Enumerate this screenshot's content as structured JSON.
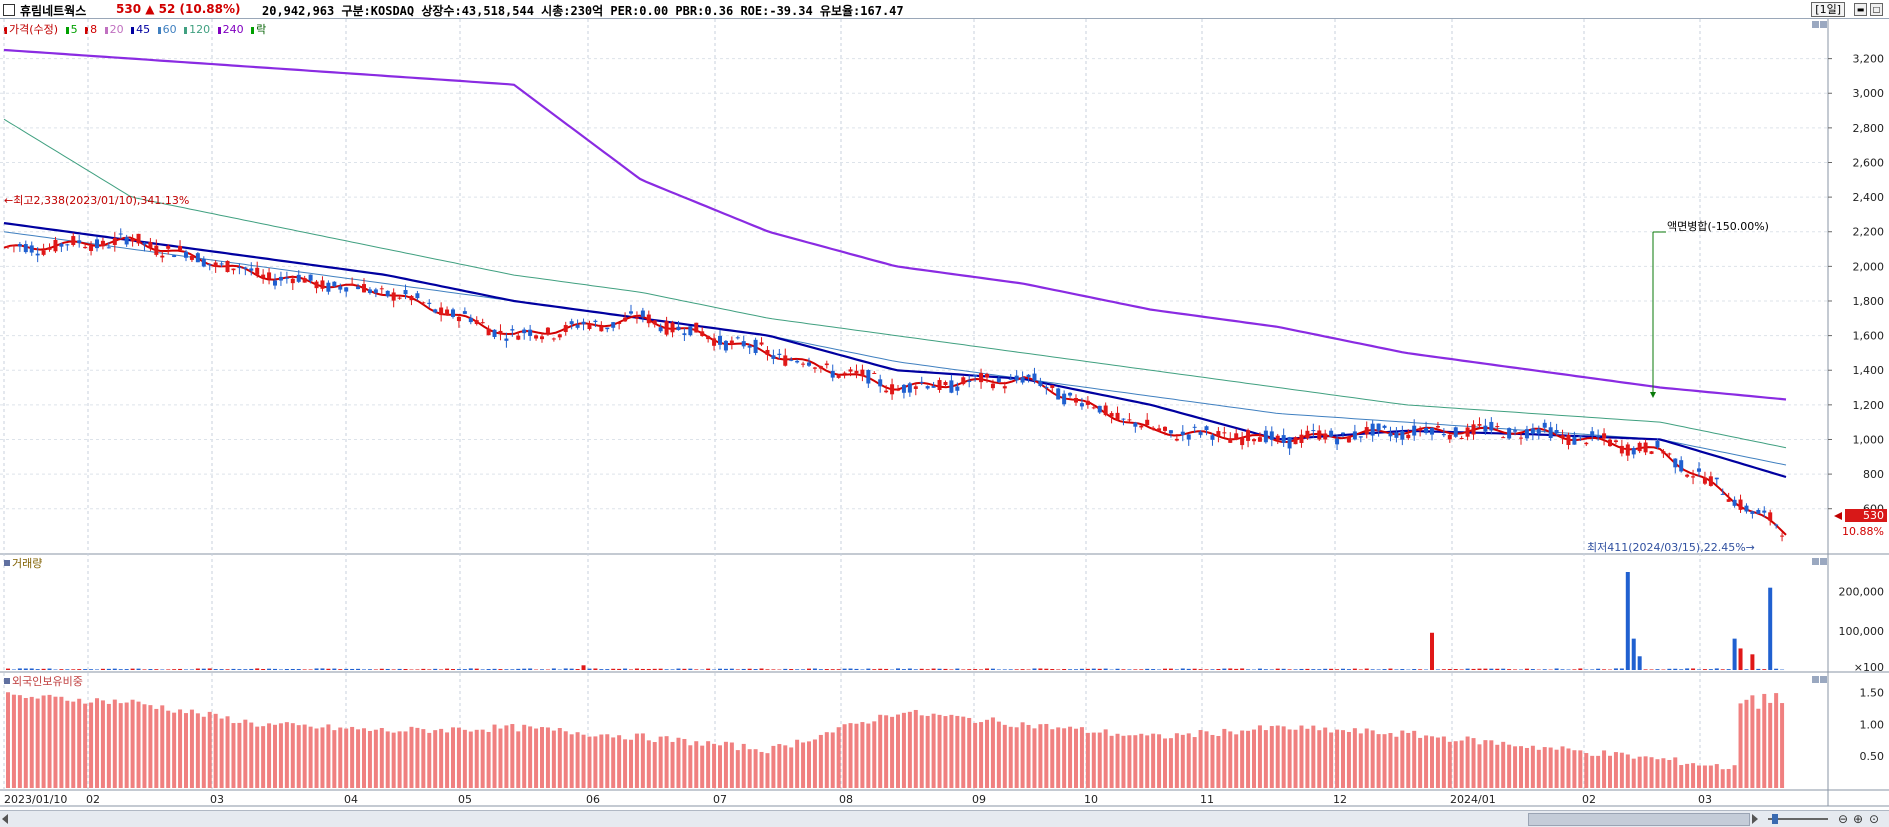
{
  "header": {
    "stock_name": "휴림네트웍스",
    "price": "530",
    "change": "▲ 52",
    "change_pct": "(10.88%)",
    "info": "20,942,963  구분:KOSDAQ 상장수:43,518,544 시총:230억  PER:0.00 PBR:0.36 ROE:-39.34 유보율:167.47",
    "period_button": "[1일]"
  },
  "legend": {
    "price_label": "가격(수정)",
    "ma_items": [
      {
        "label": "5",
        "color": "#00a000"
      },
      {
        "label": "8",
        "color": "#d00000"
      },
      {
        "label": "20",
        "color": "#c070c0"
      },
      {
        "label": "45",
        "color": "#0000a0"
      },
      {
        "label": "60",
        "color": "#4080c0"
      },
      {
        "label": "120",
        "color": "#40a080"
      },
      {
        "label": "240",
        "color": "#8000c0"
      }
    ],
    "extra_label": "락"
  },
  "annotations": {
    "high": "←최고2,338(2023/01/10),341.13%",
    "low": "최저411(2024/03/15),22.45%→",
    "split": "액면병합(-150.00%)",
    "current_price": "530",
    "current_pct": "10.88%"
  },
  "panels": {
    "volume_title": "거래량",
    "foreign_title": "외국인보유비중"
  },
  "colors": {
    "up": "#e01818",
    "down": "#2060d0",
    "foreign_bar": "#f08080",
    "ma240": "#8a2be2"
  },
  "chart_data": [
    {
      "type": "line",
      "title": "가격(수정)",
      "x": [
        "2023/01/10",
        "02",
        "03",
        "04",
        "05",
        "06",
        "07",
        "08",
        "09",
        "10",
        "11",
        "12",
        "2024/01",
        "02",
        "03"
      ],
      "ylim": [
        350,
        3400
      ],
      "y_ticks": [
        "3,200",
        "3,000",
        "2,800",
        "2,600",
        "2,400",
        "2,200",
        "2,000",
        "1,800",
        "1,600",
        "1,400",
        "1,200",
        "1,000",
        "800",
        "600"
      ],
      "series": [
        {
          "name": "240",
          "values": [
            3250,
            3200,
            3150,
            3100,
            3050,
            2500,
            2200,
            2000,
            1900,
            1750,
            1650,
            1500,
            1400,
            1300,
            1230
          ]
        },
        {
          "name": "120",
          "values": [
            2850,
            2400,
            2250,
            2100,
            1950,
            1850,
            1700,
            1600,
            1500,
            1400,
            1300,
            1200,
            1150,
            1100,
            950
          ]
        },
        {
          "name": "60",
          "values": [
            2200,
            2100,
            2000,
            1900,
            1800,
            1700,
            1600,
            1450,
            1350,
            1250,
            1150,
            1100,
            1050,
            1000,
            850
          ]
        },
        {
          "name": "45",
          "values": [
            2250,
            2150,
            2050,
            1950,
            1800,
            1700,
            1600,
            1400,
            1350,
            1200,
            1000,
            1050,
            1030,
            1000,
            780
          ]
        },
        {
          "name": "8",
          "values": [
            2100,
            2150,
            1950,
            1850,
            1600,
            1700,
            1500,
            1300,
            1350,
            1050,
            1000,
            1050,
            1050,
            930,
            450
          ]
        }
      ],
      "high": 2338,
      "low": 411,
      "last": 530
    },
    {
      "type": "bar",
      "title": "거래량",
      "y_ticks": [
        "200,000",
        "100,000",
        "100"
      ],
      "ylim": [
        0,
        250000
      ]
    },
    {
      "type": "bar",
      "title": "외국인보유비중",
      "y_ticks": [
        "1.50",
        "1.00",
        "0.50"
      ],
      "ylim": [
        0,
        1.7
      ]
    }
  ]
}
